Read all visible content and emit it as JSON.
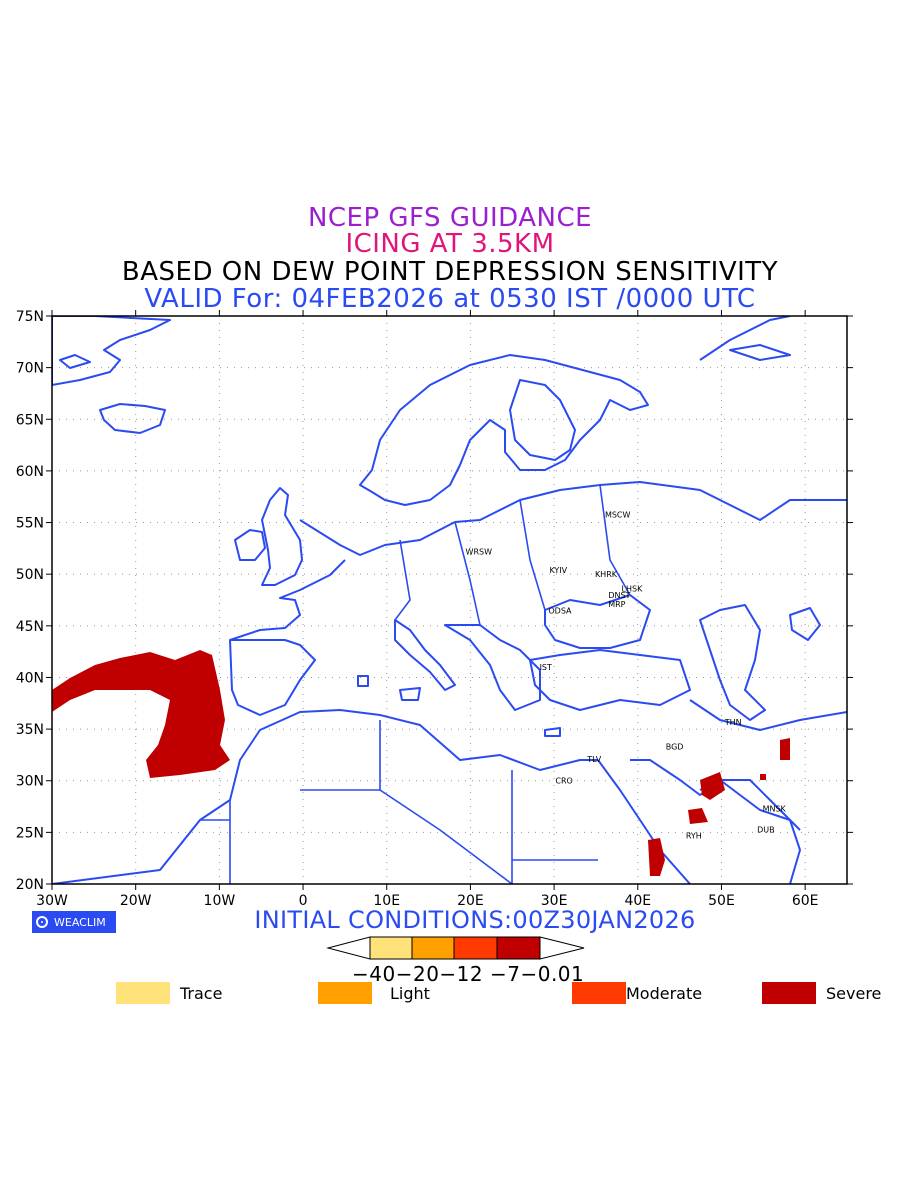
{
  "titles": {
    "line1": "NCEP GFS GUIDANCE",
    "line2": "ICING AT 3.5KM",
    "line3": "BASED ON DEW POINT DEPRESSION SENSITIVITY",
    "line4": "VALID For: 04FEB2026 at 0530 IST /0000 UTC"
  },
  "axes": {
    "lat_labels": [
      "75N",
      "70N",
      "65N",
      "60N",
      "55N",
      "50N",
      "45N",
      "40N",
      "35N",
      "30N",
      "25N",
      "20N"
    ],
    "lon_labels": [
      "30W",
      "20W",
      "10W",
      "0",
      "10E",
      "20E",
      "30E",
      "40E",
      "50E",
      "60E"
    ]
  },
  "cities": [
    {
      "name": "MSCW"
    },
    {
      "name": "WRSW"
    },
    {
      "name": "KYIV"
    },
    {
      "name": "KHRK"
    },
    {
      "name": "LHSK"
    },
    {
      "name": "DNST"
    },
    {
      "name": "MRP"
    },
    {
      "name": "ODSA"
    },
    {
      "name": "IST"
    },
    {
      "name": "THN"
    },
    {
      "name": "BGD"
    },
    {
      "name": "TLV"
    },
    {
      "name": "CRO"
    },
    {
      "name": "MNSK"
    },
    {
      "name": "DUB"
    },
    {
      "name": "RYH"
    }
  ],
  "logo": {
    "text": "WEACLIM"
  },
  "initial_conditions": "INITIAL CONDITIONS:00Z30JAN2026",
  "colorbar": {
    "tick_labels": "−40−20−12 −7−0.01",
    "colors": [
      "#ffe27a",
      "#ffa000",
      "#ff3a00",
      "#c00000"
    ]
  },
  "legend": [
    {
      "label": "Trace",
      "color": "#ffe27a"
    },
    {
      "label": "Light",
      "color": "#ffa000"
    },
    {
      "label": "Moderate",
      "color": "#ff3a00"
    },
    {
      "label": "Severe",
      "color": "#c00000"
    }
  ],
  "colors": {
    "coastline": "#2b4bf2",
    "severe": "#c00000"
  }
}
